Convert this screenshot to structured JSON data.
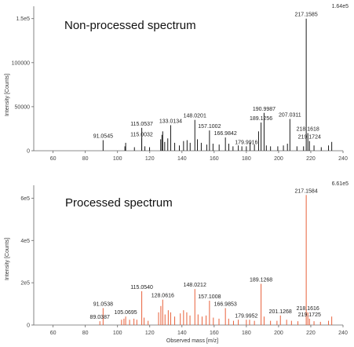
{
  "chart_data": [
    {
      "type": "bar",
      "title": "Non-processed spectrum",
      "xlabel": "",
      "ylabel": "Intensity [Counts]",
      "scale_label": "1.64e5",
      "color": "#1a1a1a",
      "xlim": [
        48,
        240
      ],
      "ylim": [
        0,
        164000
      ],
      "xticks": [
        60,
        80,
        100,
        120,
        140,
        160,
        180,
        200,
        220,
        240
      ],
      "yticks": [
        {
          "value": 0,
          "label": "0"
        },
        {
          "value": 50000,
          "label": "50000"
        },
        {
          "value": 100000,
          "label": "100000"
        },
        {
          "value": 150000,
          "label": "1.5e5"
        }
      ],
      "peaks": [
        {
          "mz": 91.0545,
          "intensity": 12000,
          "label": "91.0545"
        },
        {
          "mz": 104.6,
          "intensity": 5000
        },
        {
          "mz": 105.07,
          "intensity": 9000
        },
        {
          "mz": 110.5,
          "intensity": 4000
        },
        {
          "mz": 115.0032,
          "intensity": 14000,
          "label": "115.0032"
        },
        {
          "mz": 115.0537,
          "intensity": 26000,
          "label": "115.0537"
        },
        {
          "mz": 117.0,
          "intensity": 5000
        },
        {
          "mz": 119.9,
          "intensity": 4000
        },
        {
          "mz": 126.8,
          "intensity": 13000
        },
        {
          "mz": 127.6,
          "intensity": 18000
        },
        {
          "mz": 128.06,
          "intensity": 22000
        },
        {
          "mz": 129.3,
          "intensity": 10000
        },
        {
          "mz": 131.2,
          "intensity": 14000
        },
        {
          "mz": 133.0134,
          "intensity": 29000,
          "label": "133.0134"
        },
        {
          "mz": 135.5,
          "intensity": 9000
        },
        {
          "mz": 138.4,
          "intensity": 6000
        },
        {
          "mz": 141.0,
          "intensity": 11000
        },
        {
          "mz": 143.2,
          "intensity": 12000
        },
        {
          "mz": 145.1,
          "intensity": 9000
        },
        {
          "mz": 148.0201,
          "intensity": 35000,
          "label": "148.0201"
        },
        {
          "mz": 149.6,
          "intensity": 13000
        },
        {
          "mz": 152.0,
          "intensity": 9000
        },
        {
          "mz": 155.4,
          "intensity": 7000
        },
        {
          "mz": 157.1002,
          "intensity": 23000,
          "label": "157.1002"
        },
        {
          "mz": 159.3,
          "intensity": 8000
        },
        {
          "mz": 163.1,
          "intensity": 7000
        },
        {
          "mz": 166.9842,
          "intensity": 15000,
          "label": "166.9842"
        },
        {
          "mz": 169.1,
          "intensity": 8000
        },
        {
          "mz": 171.7,
          "intensity": 5000
        },
        {
          "mz": 175.0,
          "intensity": 6000
        },
        {
          "mz": 177.2,
          "intensity": 5000
        },
        {
          "mz": 179.9916,
          "intensity": 5000,
          "label": "179.9916"
        },
        {
          "mz": 182.3,
          "intensity": 9000
        },
        {
          "mz": 185.0,
          "intensity": 7000
        },
        {
          "mz": 187.6,
          "intensity": 22000
        },
        {
          "mz": 189.1256,
          "intensity": 32000,
          "label": "189.1256"
        },
        {
          "mz": 190.9987,
          "intensity": 43000,
          "label": "190.9987"
        },
        {
          "mz": 192.4,
          "intensity": 6000
        },
        {
          "mz": 195.0,
          "intensity": 5000
        },
        {
          "mz": 199.5,
          "intensity": 5000
        },
        {
          "mz": 203.0,
          "intensity": 6000
        },
        {
          "mz": 205.5,
          "intensity": 8000
        },
        {
          "mz": 207.0311,
          "intensity": 36000,
          "label": "207.0311"
        },
        {
          "mz": 211.4,
          "intensity": 5000
        },
        {
          "mz": 215.5,
          "intensity": 5000
        },
        {
          "mz": 217.1585,
          "intensity": 150000,
          "label": "217.1585"
        },
        {
          "mz": 218.1618,
          "intensity": 20000,
          "label": "218.1618"
        },
        {
          "mz": 219.1724,
          "intensity": 11000,
          "label": "219.1724"
        },
        {
          "mz": 222.0,
          "intensity": 6000
        },
        {
          "mz": 226.5,
          "intensity": 4000
        },
        {
          "mz": 231.0,
          "intensity": 6000
        },
        {
          "mz": 233.0,
          "intensity": 10000
        }
      ]
    },
    {
      "type": "bar",
      "title": "Processed spectrum",
      "xlabel": "Observed mass [m/z]",
      "ylabel": "Intensity [Counts]",
      "scale_label": "6.61e5",
      "color": "#e8603a",
      "xlim": [
        48,
        240
      ],
      "ylim": [
        0,
        661000
      ],
      "xticks": [
        60,
        80,
        100,
        120,
        140,
        160,
        180,
        200,
        220,
        240
      ],
      "yticks": [
        {
          "value": 0,
          "label": "0"
        },
        {
          "value": 200000,
          "label": "2e5"
        },
        {
          "value": 400000,
          "label": "4e5"
        },
        {
          "value": 600000,
          "label": "6e5"
        }
      ],
      "peaks": [
        {
          "mz": 89.0387,
          "intensity": 18000,
          "label": "89.0387"
        },
        {
          "mz": 91.0538,
          "intensity": 80000,
          "label": "91.0538"
        },
        {
          "mz": 102.5,
          "intensity": 25000
        },
        {
          "mz": 104.0,
          "intensity": 30000
        },
        {
          "mz": 105.0695,
          "intensity": 40000,
          "label": "105.0695"
        },
        {
          "mz": 107.5,
          "intensity": 25000
        },
        {
          "mz": 110.2,
          "intensity": 30000
        },
        {
          "mz": 112.0,
          "intensity": 25000
        },
        {
          "mz": 115.054,
          "intensity": 160000,
          "label": "115.0540"
        },
        {
          "mz": 116.5,
          "intensity": 35000
        },
        {
          "mz": 119.0,
          "intensity": 20000
        },
        {
          "mz": 125.5,
          "intensity": 60000
        },
        {
          "mz": 126.9,
          "intensity": 90000
        },
        {
          "mz": 128.0616,
          "intensity": 120000,
          "label": "128.0616"
        },
        {
          "mz": 129.5,
          "intensity": 50000
        },
        {
          "mz": 131.5,
          "intensity": 70000
        },
        {
          "mz": 133.0,
          "intensity": 60000
        },
        {
          "mz": 135.5,
          "intensity": 40000
        },
        {
          "mz": 139.0,
          "intensity": 55000
        },
        {
          "mz": 141.0,
          "intensity": 70000
        },
        {
          "mz": 143.0,
          "intensity": 60000
        },
        {
          "mz": 145.0,
          "intensity": 45000
        },
        {
          "mz": 148.0212,
          "intensity": 170000,
          "label": "148.0212"
        },
        {
          "mz": 150.0,
          "intensity": 50000
        },
        {
          "mz": 152.5,
          "intensity": 40000
        },
        {
          "mz": 155.0,
          "intensity": 45000
        },
        {
          "mz": 157.1008,
          "intensity": 115000,
          "label": "157.1008"
        },
        {
          "mz": 159.5,
          "intensity": 35000
        },
        {
          "mz": 163.0,
          "intensity": 30000
        },
        {
          "mz": 166.9853,
          "intensity": 80000,
          "label": "166.9853"
        },
        {
          "mz": 169.0,
          "intensity": 30000
        },
        {
          "mz": 172.0,
          "intensity": 20000
        },
        {
          "mz": 175.0,
          "intensity": 25000
        },
        {
          "mz": 179.9952,
          "intensity": 25000,
          "label": "179.9952"
        },
        {
          "mz": 182.0,
          "intensity": 25000
        },
        {
          "mz": 185.0,
          "intensity": 20000
        },
        {
          "mz": 189.1268,
          "intensity": 195000,
          "label": "189.1268"
        },
        {
          "mz": 191.0,
          "intensity": 40000
        },
        {
          "mz": 195.0,
          "intensity": 20000
        },
        {
          "mz": 199.0,
          "intensity": 20000
        },
        {
          "mz": 201.1268,
          "intensity": 45000,
          "label": "201.1268"
        },
        {
          "mz": 205.0,
          "intensity": 25000
        },
        {
          "mz": 208.0,
          "intensity": 20000
        },
        {
          "mz": 212.0,
          "intensity": 18000
        },
        {
          "mz": 217.1584,
          "intensity": 615000,
          "label": "217.1584"
        },
        {
          "mz": 218.1616,
          "intensity": 60000,
          "label": "218.1616"
        },
        {
          "mz": 219.1725,
          "intensity": 30000,
          "label": "219.1725"
        },
        {
          "mz": 222.0,
          "intensity": 18000
        },
        {
          "mz": 226.0,
          "intensity": 15000
        },
        {
          "mz": 231.0,
          "intensity": 20000
        },
        {
          "mz": 233.0,
          "intensity": 40000
        }
      ]
    }
  ]
}
